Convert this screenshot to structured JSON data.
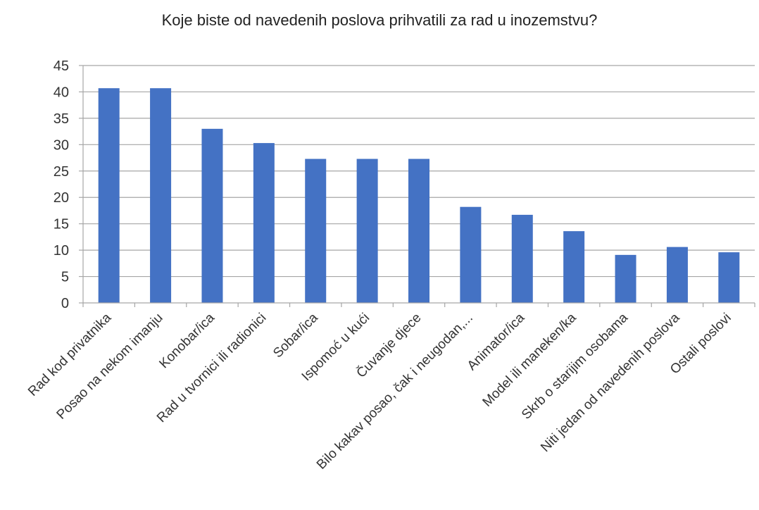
{
  "chart_data": {
    "type": "bar",
    "title": "Koje biste od navedenih poslova prihvatili za rad u inozemstvu?",
    "xlabel": "",
    "ylabel": "",
    "categories": [
      "Rad kod privatnika",
      "Posao na nekom imanju",
      "Konobar/ica",
      "Rad u tvornici ili radionici",
      "Sobar/ica",
      "Ispomoć u kući",
      "Čuvanje djece",
      "Bilo kakav posao, čak i neugodan,...",
      "Animator/ica",
      "Model ili maneken/ka",
      "Skrb o starijim osobama",
      "Niti jedan od navedenih poslova",
      "Ostali poslovi"
    ],
    "values": [
      40.7,
      40.7,
      33.0,
      30.3,
      27.3,
      27.3,
      27.3,
      18.2,
      16.7,
      13.6,
      9.1,
      10.6,
      9.6
    ],
    "ylim": [
      0,
      45
    ],
    "yticks": [
      0,
      5,
      10,
      15,
      20,
      25,
      30,
      35,
      40,
      45
    ],
    "grid": true,
    "legend": "none",
    "bar_color": "#4472C4"
  }
}
